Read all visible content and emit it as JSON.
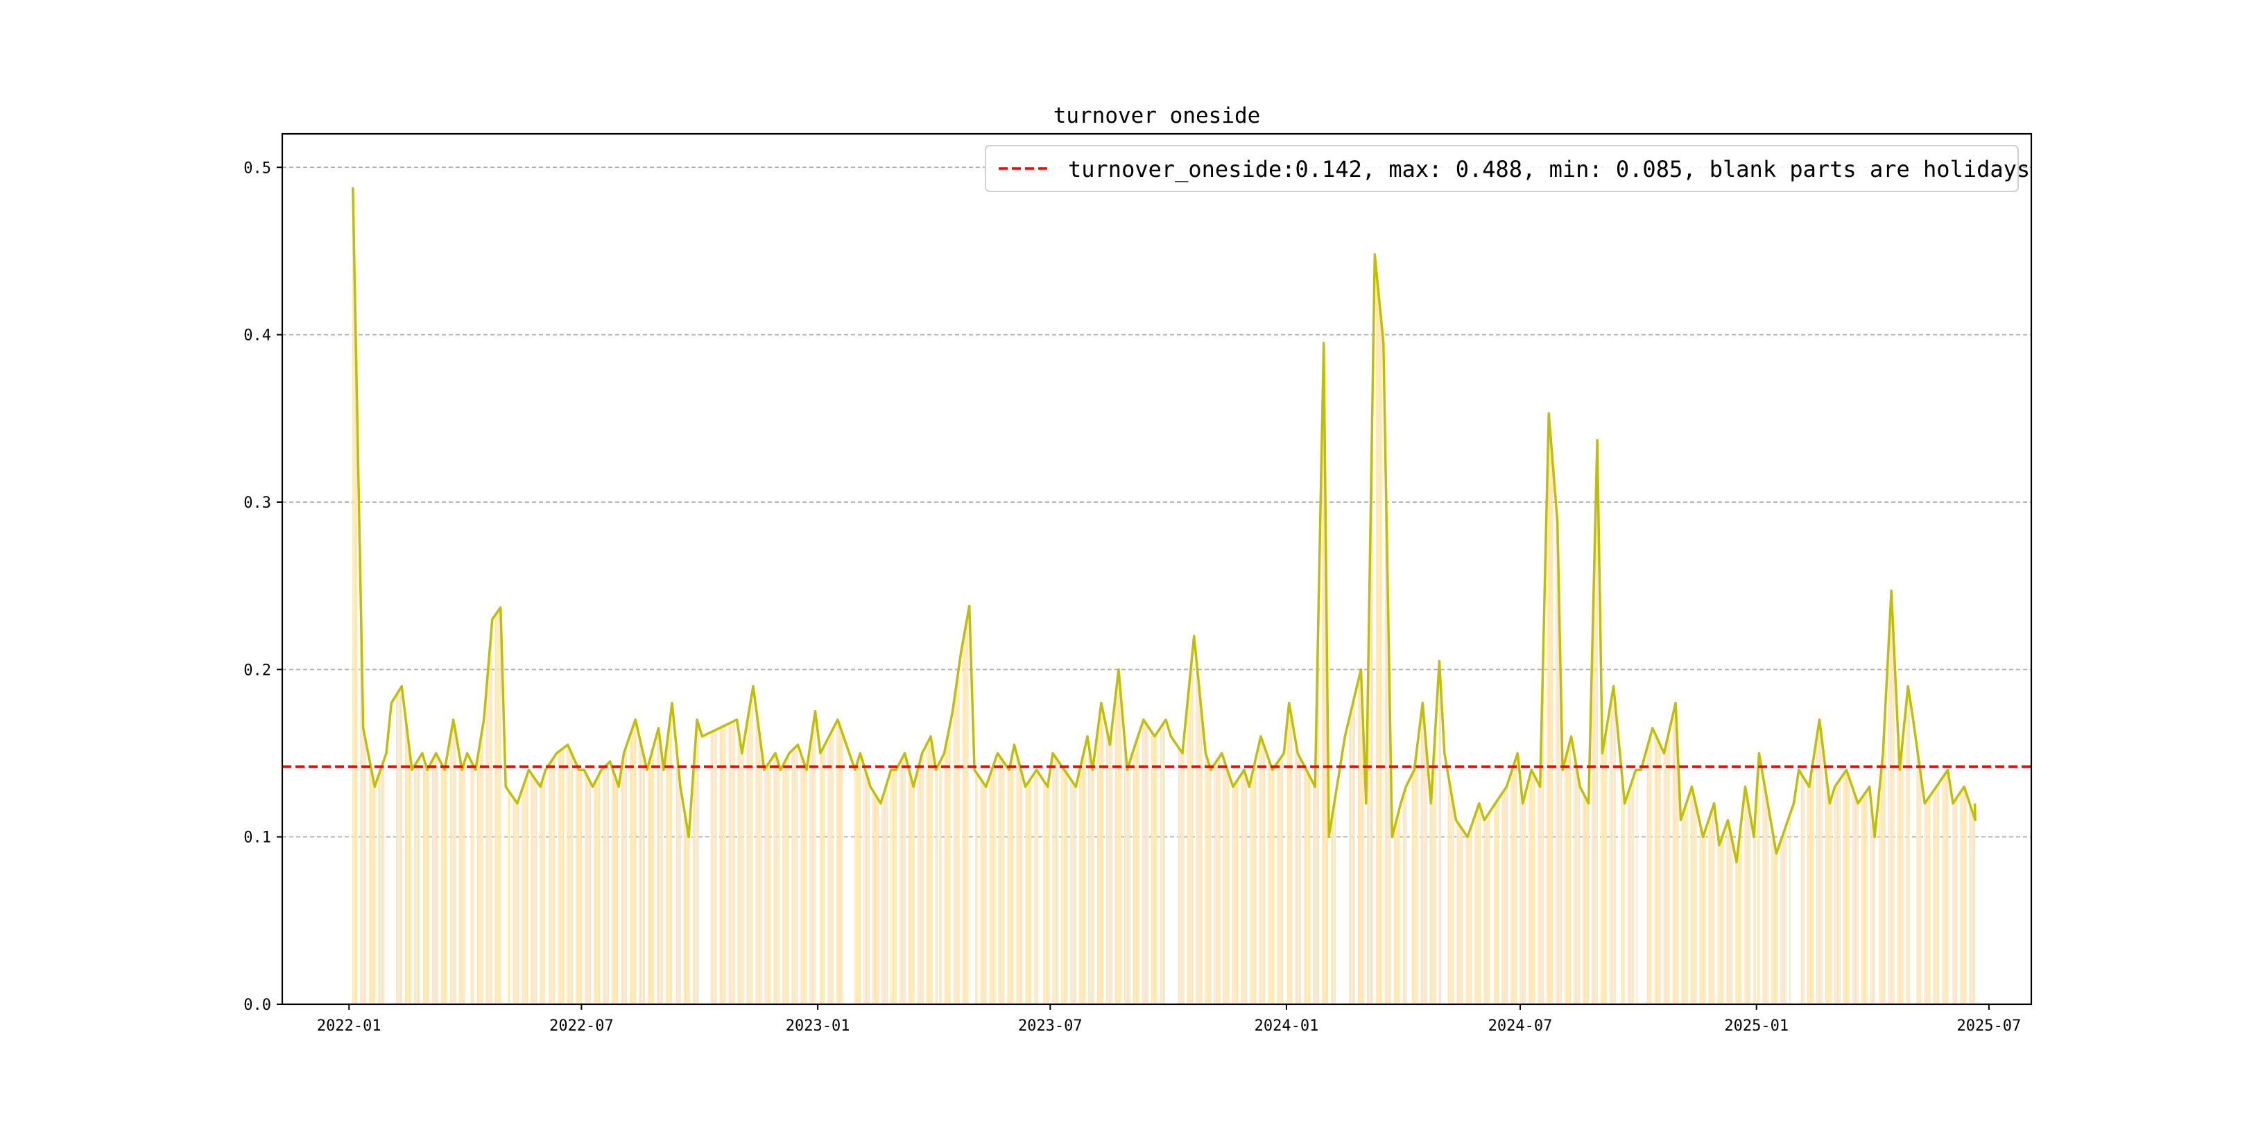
{
  "chart_data": {
    "type": "line",
    "title": "turnover oneside",
    "xlabel": "",
    "ylabel": "",
    "ylim": [
      0,
      0.52
    ],
    "xlim": [
      "2021-11-10",
      "2025-08-03"
    ],
    "grid": "y-dashed",
    "legend_placement": "top-right",
    "yticks": [
      "0.0",
      "0.1",
      "0.2",
      "0.3",
      "0.4",
      "0.5"
    ],
    "xticks": [
      "2022-01",
      "2022-07",
      "2023-01",
      "2023-07",
      "2024-01",
      "2024-07",
      "2025-01",
      "2025-07"
    ],
    "legend": {
      "label": "turnover_oneside:0.142, max: 0.488, min: 0.085, blank parts are holidays"
    },
    "mean": 0.142,
    "max": 0.488,
    "min": 0.085,
    "start_date": "2022-01-04",
    "end_date": "2025-06-20",
    "colors": {
      "line": "#bfbf00",
      "mean_line": "#ff0000",
      "bars": "#ffe4b5",
      "grid": "#b0b0b0"
    },
    "holidays": [
      [
        "2022-01-31",
        "2022-02-06"
      ],
      [
        "2022-04-04",
        "2022-04-05"
      ],
      [
        "2022-04-30",
        "2022-05-04"
      ],
      [
        "2022-06-03",
        "2022-06-03"
      ],
      [
        "2022-09-12",
        "2022-09-12"
      ],
      [
        "2022-10-01",
        "2022-10-09"
      ],
      [
        "2023-01-02",
        "2023-01-02"
      ],
      [
        "2023-01-21",
        "2023-01-29"
      ],
      [
        "2023-04-05",
        "2023-04-05"
      ],
      [
        "2023-04-29",
        "2023-05-03"
      ],
      [
        "2023-06-22",
        "2023-06-23"
      ],
      [
        "2023-09-29",
        "2023-10-08"
      ],
      [
        "2024-01-01",
        "2024-01-01"
      ],
      [
        "2024-02-09",
        "2024-02-18"
      ],
      [
        "2024-04-04",
        "2024-04-05"
      ],
      [
        "2024-05-01",
        "2024-05-05"
      ],
      [
        "2024-06-10",
        "2024-06-10"
      ],
      [
        "2024-09-16",
        "2024-09-17"
      ],
      [
        "2024-10-01",
        "2024-10-07"
      ],
      [
        "2025-01-01",
        "2025-01-01"
      ],
      [
        "2025-01-28",
        "2025-02-04"
      ],
      [
        "2025-04-04",
        "2025-04-04"
      ],
      [
        "2025-05-01",
        "2025-05-05"
      ],
      [
        "2025-06-02",
        "2025-06-02"
      ]
    ],
    "monthly_weekly_values": {
      "2022-01": [
        0.488,
        0.165,
        0.13,
        0.15
      ],
      "2022-02": [
        0.18,
        0.19,
        0.14,
        0.15
      ],
      "2022-03": [
        0.14,
        0.15,
        0.14,
        0.17,
        0.14
      ],
      "2022-04": [
        0.15,
        0.14,
        0.17,
        0.23,
        0.237
      ],
      "2022-05": [
        0.13,
        0.12,
        0.14,
        0.13
      ],
      "2022-06": [
        0.14,
        0.15,
        0.155,
        0.14
      ],
      "2022-07": [
        0.14,
        0.13,
        0.14,
        0.145,
        0.13
      ],
      "2022-08": [
        0.15,
        0.17,
        0.14,
        0.165
      ],
      "2022-09": [
        0.14,
        0.18,
        0.13,
        0.1,
        0.17
      ],
      "2022-10": [
        0.16,
        0.165,
        0.17
      ],
      "2022-11": [
        0.15,
        0.19,
        0.14,
        0.15
      ],
      "2022-12": [
        0.14,
        0.15,
        0.155,
        0.14,
        0.175
      ],
      "2023-01": [
        0.15,
        0.17,
        0.14
      ],
      "2023-02": [
        0.15,
        0.13,
        0.12,
        0.14
      ],
      "2023-03": [
        0.14,
        0.15,
        0.13,
        0.15,
        0.16
      ],
      "2023-04": [
        0.14,
        0.15,
        0.175,
        0.21,
        0.238
      ],
      "2023-05": [
        0.14,
        0.13,
        0.15,
        0.14
      ],
      "2023-06": [
        0.155,
        0.13,
        0.14,
        0.13
      ],
      "2023-07": [
        0.15,
        0.14,
        0.13,
        0.16
      ],
      "2023-08": [
        0.14,
        0.18,
        0.155,
        0.2,
        0.14
      ],
      "2023-09": [
        0.15,
        0.17,
        0.16,
        0.17
      ],
      "2023-10": [
        0.16,
        0.15,
        0.22,
        0.15
      ],
      "2023-11": [
        0.14,
        0.15,
        0.13,
        0.14
      ],
      "2023-12": [
        0.13,
        0.16,
        0.14,
        0.15
      ],
      "2024-01": [
        0.18,
        0.15,
        0.14,
        0.13,
        0.395
      ],
      "2024-02": [
        0.1,
        0.16,
        0.2
      ],
      "2024-03": [
        0.12,
        0.448,
        0.395,
        0.1,
        0.12
      ],
      "2024-04": [
        0.13,
        0.14,
        0.18,
        0.12,
        0.205
      ],
      "2024-05": [
        0.15,
        0.11,
        0.1,
        0.12
      ],
      "2024-06": [
        0.11,
        0.12,
        0.13,
        0.15
      ],
      "2024-07": [
        0.12,
        0.14,
        0.13,
        0.353,
        0.288
      ],
      "2024-08": [
        0.14,
        0.16,
        0.13,
        0.12,
        0.337
      ],
      "2024-09": [
        0.15,
        0.19,
        0.12,
        0.14
      ],
      "2024-10": [
        0.14,
        0.165,
        0.15,
        0.18
      ],
      "2024-11": [
        0.11,
        0.13,
        0.1,
        0.12
      ],
      "2024-12": [
        0.095,
        0.11,
        0.085,
        0.13,
        0.1
      ],
      "2025-01": [
        0.15,
        0.09,
        0.12
      ],
      "2025-02": [
        0.14,
        0.13,
        0.17,
        0.12
      ],
      "2025-03": [
        0.13,
        0.14,
        0.12,
        0.13
      ],
      "2025-04": [
        0.1,
        0.15,
        0.247,
        0.14,
        0.19
      ],
      "2025-05": [
        0.17,
        0.12,
        0.13,
        0.14
      ],
      "2025-06": [
        0.12,
        0.13,
        0.11,
        0.12
      ]
    }
  }
}
